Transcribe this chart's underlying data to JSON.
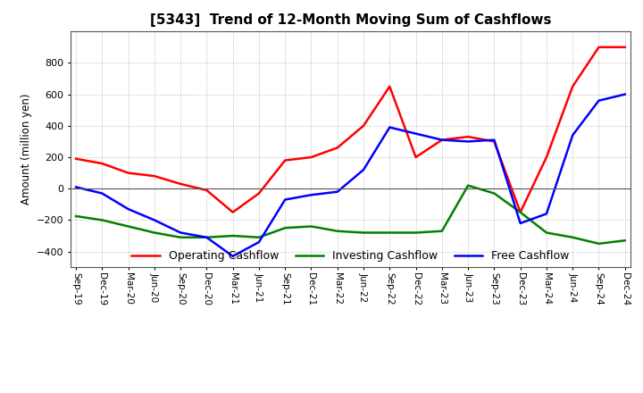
{
  "title": "[5343]  Trend of 12-Month Moving Sum of Cashflows",
  "ylabel": "Amount (million yen)",
  "xlabels": [
    "Sep-19",
    "Dec-19",
    "Mar-20",
    "Jun-20",
    "Sep-20",
    "Dec-20",
    "Mar-21",
    "Jun-21",
    "Sep-21",
    "Dec-21",
    "Mar-22",
    "Jun-22",
    "Sep-22",
    "Dec-22",
    "Mar-23",
    "Jun-23",
    "Sep-23",
    "Dec-23",
    "Mar-24",
    "Jun-24",
    "Sep-24",
    "Dec-24"
  ],
  "operating": [
    190,
    160,
    100,
    80,
    30,
    -10,
    -150,
    -30,
    180,
    200,
    260,
    400,
    650,
    200,
    310,
    330,
    300,
    -150,
    200,
    650,
    900,
    900
  ],
  "investing": [
    -175,
    -200,
    -240,
    -280,
    -310,
    -310,
    -300,
    -310,
    -250,
    -240,
    -270,
    -280,
    -280,
    -280,
    -270,
    20,
    -30,
    -150,
    -280,
    -310,
    -350,
    -330
  ],
  "free": [
    10,
    -30,
    -130,
    -200,
    -280,
    -310,
    -430,
    -340,
    -70,
    -40,
    -20,
    120,
    390,
    350,
    310,
    300,
    310,
    -220,
    -160,
    340,
    560,
    600
  ],
  "operating_color": "#FF0000",
  "investing_color": "#008000",
  "free_color": "#0000FF",
  "ylim": [
    -500,
    1000
  ],
  "yticks": [
    -400,
    -200,
    0,
    200,
    400,
    600,
    800
  ],
  "background_color": "#FFFFFF",
  "grid_color": "#AAAAAA"
}
